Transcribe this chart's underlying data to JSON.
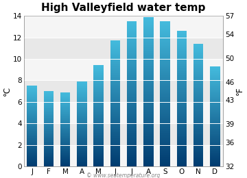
{
  "title": "High Valleyfield water temp",
  "months": [
    "J",
    "F",
    "M",
    "A",
    "M",
    "J",
    "J",
    "A",
    "S",
    "O",
    "N",
    "D"
  ],
  "values_c": [
    7.5,
    7.0,
    6.9,
    7.9,
    9.4,
    11.7,
    13.5,
    13.9,
    13.5,
    12.6,
    11.4,
    9.3
  ],
  "ylim_c": [
    0,
    14
  ],
  "yticks_c": [
    0,
    2,
    4,
    6,
    8,
    10,
    12,
    14
  ],
  "ylim_f": [
    32,
    57
  ],
  "yticks_f": [
    32,
    36,
    39,
    43,
    46,
    50,
    54,
    57
  ],
  "ylabel_left": "°C",
  "ylabel_right": "°F",
  "bar_color_top": "#44BBDD",
  "bar_color_bottom": "#003B6F",
  "background_color": "#ffffff",
  "plot_bg_light": "#f5f5f5",
  "plot_bg_dark": "#e8e8e8",
  "watermark": "© www.seatemperature.org",
  "title_fontsize": 11,
  "tick_fontsize": 7.5,
  "label_fontsize": 8.5,
  "bar_width": 0.6
}
